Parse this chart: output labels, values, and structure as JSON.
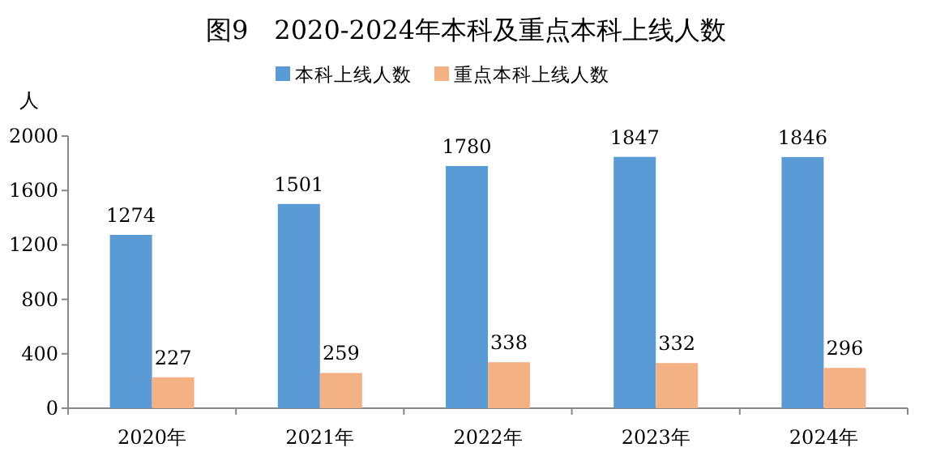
{
  "chart_data": {
    "type": "bar",
    "title": "图9　2020-2024年本科及重点本科上线人数",
    "ylabel": "人",
    "categories": [
      "2020年",
      "2021年",
      "2022年",
      "2023年",
      "2024年"
    ],
    "series": [
      {
        "name": "本科上线人数",
        "color": "#5b9bd5",
        "values": [
          1274,
          1501,
          1780,
          1847,
          1846
        ]
      },
      {
        "name": "重点本科上线人数",
        "color": "#f4b183",
        "values": [
          227,
          259,
          338,
          332,
          296
        ]
      }
    ],
    "ylim": [
      0,
      2000
    ],
    "yticks": [
      0,
      400,
      800,
      1200,
      1600,
      2000
    ],
    "data_labels": true,
    "legend": "top",
    "grid": false
  }
}
